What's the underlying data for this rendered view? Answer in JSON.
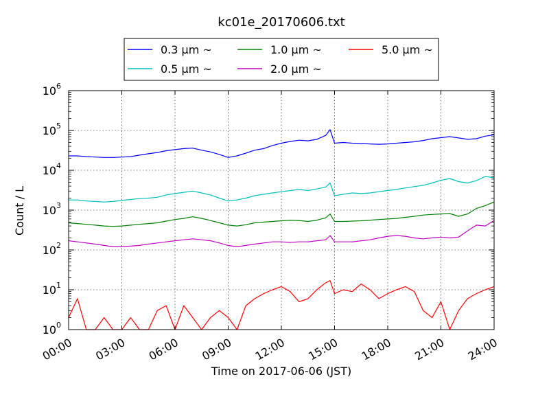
{
  "chart_data": {
    "type": "line",
    "title": "kc01e_20170606.txt",
    "xlabel": "Time on 2017-06-06 (JST)",
    "ylabel": "Count / L",
    "yscale": "log",
    "ylim": [
      1,
      1000000
    ],
    "xlim": [
      "00:00",
      "24:00"
    ],
    "x_tick_labels": [
      "00:00",
      "03:00",
      "06:00",
      "09:00",
      "12:00",
      "15:00",
      "18:00",
      "21:00",
      "24:00"
    ],
    "y_tick_labels": [
      {
        "base": "10",
        "exp": "0"
      },
      {
        "base": "10",
        "exp": "1"
      },
      {
        "base": "10",
        "exp": "2"
      },
      {
        "base": "10",
        "exp": "3"
      },
      {
        "base": "10",
        "exp": "4"
      },
      {
        "base": "10",
        "exp": "5"
      },
      {
        "base": "10",
        "exp": "6"
      }
    ],
    "grid": true,
    "legend_position": "top-center",
    "x_hours": [
      0,
      0.5,
      1,
      1.5,
      2,
      2.5,
      3,
      3.5,
      4,
      4.5,
      5,
      5.5,
      6,
      6.5,
      7,
      7.5,
      8,
      8.5,
      9,
      9.5,
      10,
      10.5,
      11,
      11.5,
      12,
      12.5,
      13,
      13.5,
      14,
      14.5,
      14.75,
      15,
      15.5,
      16,
      16.5,
      17,
      17.5,
      18,
      18.5,
      19,
      19.5,
      20,
      20.5,
      21,
      21.5,
      22,
      22.5,
      23,
      23.5,
      24
    ],
    "series": [
      {
        "name": "0.3 μm ~",
        "color": "#0000ff",
        "values": [
          23000,
          23000,
          22000,
          21500,
          21000,
          21000,
          21500,
          22000,
          24000,
          26000,
          28000,
          31000,
          33000,
          35000,
          36000,
          32000,
          29000,
          25000,
          21000,
          23000,
          27000,
          32000,
          35000,
          42000,
          48000,
          53000,
          57000,
          55000,
          60000,
          75000,
          105000,
          48000,
          50000,
          48000,
          47000,
          46000,
          45000,
          46000,
          48000,
          50000,
          52000,
          56000,
          62000,
          66000,
          70000,
          65000,
          60000,
          62000,
          72000,
          78000
        ]
      },
      {
        "name": "0.5 μm ~",
        "color": "#00bfbf",
        "values": [
          1800,
          1800,
          1700,
          1650,
          1600,
          1650,
          1750,
          1850,
          1950,
          2000,
          2100,
          2400,
          2600,
          2800,
          3000,
          2700,
          2400,
          2000,
          1700,
          1800,
          2000,
          2300,
          2500,
          2700,
          2900,
          3100,
          3300,
          3100,
          3400,
          3800,
          4800,
          2300,
          2500,
          2700,
          2600,
          2700,
          2900,
          3100,
          3300,
          3600,
          3900,
          4200,
          4800,
          5600,
          6200,
          5200,
          4800,
          5500,
          7000,
          6500
        ]
      },
      {
        "name": "1.0 μm ~",
        "color": "#008000",
        "values": [
          480,
          460,
          440,
          420,
          400,
          390,
          400,
          420,
          440,
          460,
          480,
          530,
          580,
          620,
          680,
          620,
          550,
          480,
          420,
          400,
          430,
          480,
          500,
          520,
          540,
          560,
          550,
          520,
          560,
          640,
          800,
          520,
          520,
          530,
          540,
          560,
          580,
          600,
          620,
          660,
          700,
          750,
          780,
          800,
          820,
          700,
          800,
          1100,
          1300,
          1600
        ]
      },
      {
        "name": "2.0 μm ~",
        "color": "#bf00bf",
        "values": [
          170,
          160,
          150,
          140,
          130,
          120,
          120,
          125,
          130,
          140,
          150,
          160,
          170,
          180,
          190,
          180,
          170,
          150,
          130,
          120,
          130,
          140,
          150,
          160,
          160,
          155,
          160,
          160,
          170,
          180,
          230,
          160,
          160,
          160,
          170,
          180,
          200,
          220,
          230,
          220,
          200,
          190,
          200,
          210,
          200,
          210,
          300,
          420,
          400,
          550
        ]
      },
      {
        "name": "5.0 μm ~",
        "color": "#ff0000",
        "values": [
          2,
          6,
          1,
          1,
          2,
          1,
          1,
          2,
          1,
          1,
          3,
          4,
          1,
          4,
          2,
          1,
          2,
          3,
          2,
          1,
          4,
          6,
          8,
          10,
          12,
          9,
          5,
          6,
          10,
          15,
          17,
          8,
          10,
          9,
          14,
          10,
          6,
          8,
          10,
          12,
          9,
          3,
          2,
          5,
          1,
          3,
          6,
          8,
          10,
          12
        ]
      }
    ]
  }
}
